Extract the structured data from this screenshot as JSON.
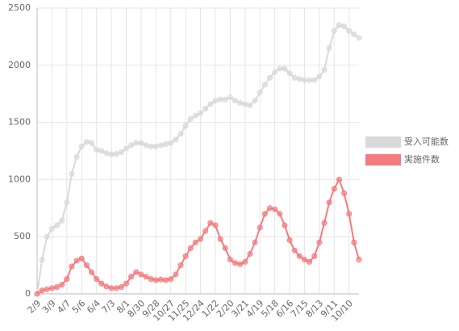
{
  "chart_data": {
    "type": "line",
    "categories": [
      "2/9",
      null,
      null,
      "3/9",
      null,
      null,
      "4/7",
      null,
      null,
      "5/6",
      null,
      null,
      "6/4",
      null,
      null,
      "7/3",
      null,
      null,
      "8/1",
      null,
      null,
      "8/30",
      null,
      null,
      "9/28",
      null,
      null,
      "10/27",
      null,
      null,
      "11/25",
      null,
      null,
      "12/24",
      null,
      null,
      "1/22",
      null,
      null,
      "2/20",
      null,
      null,
      "3/21",
      null,
      null,
      "4/19",
      null,
      null,
      "5/18",
      null,
      null,
      "6/16",
      null,
      null,
      "7/15",
      null,
      null,
      "8/13",
      null,
      null,
      "9/11",
      null,
      null,
      "10/10",
      null,
      null
    ],
    "series": [
      {
        "name": "受入可能数",
        "color": "#d9d9d9",
        "values": [
          0,
          300,
          500,
          570,
          600,
          640,
          800,
          1050,
          1200,
          1290,
          1330,
          1320,
          1260,
          1250,
          1230,
          1220,
          1225,
          1240,
          1270,
          1300,
          1320,
          1320,
          1300,
          1290,
          1290,
          1300,
          1310,
          1320,
          1350,
          1400,
          1470,
          1530,
          1560,
          1580,
          1620,
          1660,
          1690,
          1700,
          1700,
          1720,
          1690,
          1670,
          1660,
          1650,
          1690,
          1760,
          1830,
          1890,
          1940,
          1970,
          1970,
          1930,
          1890,
          1880,
          1870,
          1870,
          1870,
          1900,
          1960,
          2150,
          2300,
          2350,
          2340,
          2300,
          2270,
          2240
        ]
      },
      {
        "name": "実施件数",
        "color": "#f47b7f",
        "values": [
          0,
          30,
          40,
          50,
          60,
          80,
          130,
          240,
          290,
          310,
          250,
          190,
          130,
          90,
          65,
          50,
          50,
          60,
          90,
          150,
          190,
          170,
          150,
          130,
          120,
          125,
          120,
          130,
          170,
          250,
          330,
          400,
          450,
          480,
          550,
          620,
          600,
          480,
          400,
          300,
          270,
          260,
          280,
          350,
          450,
          580,
          700,
          750,
          740,
          700,
          600,
          470,
          380,
          330,
          300,
          280,
          330,
          450,
          620,
          800,
          920,
          1000,
          880,
          700,
          450,
          300
        ]
      }
    ],
    "ylim": [
      0,
      2500
    ],
    "yticks": [
      0,
      500,
      1000,
      1500,
      2000,
      2500
    ],
    "grid": true,
    "legend": "right"
  }
}
